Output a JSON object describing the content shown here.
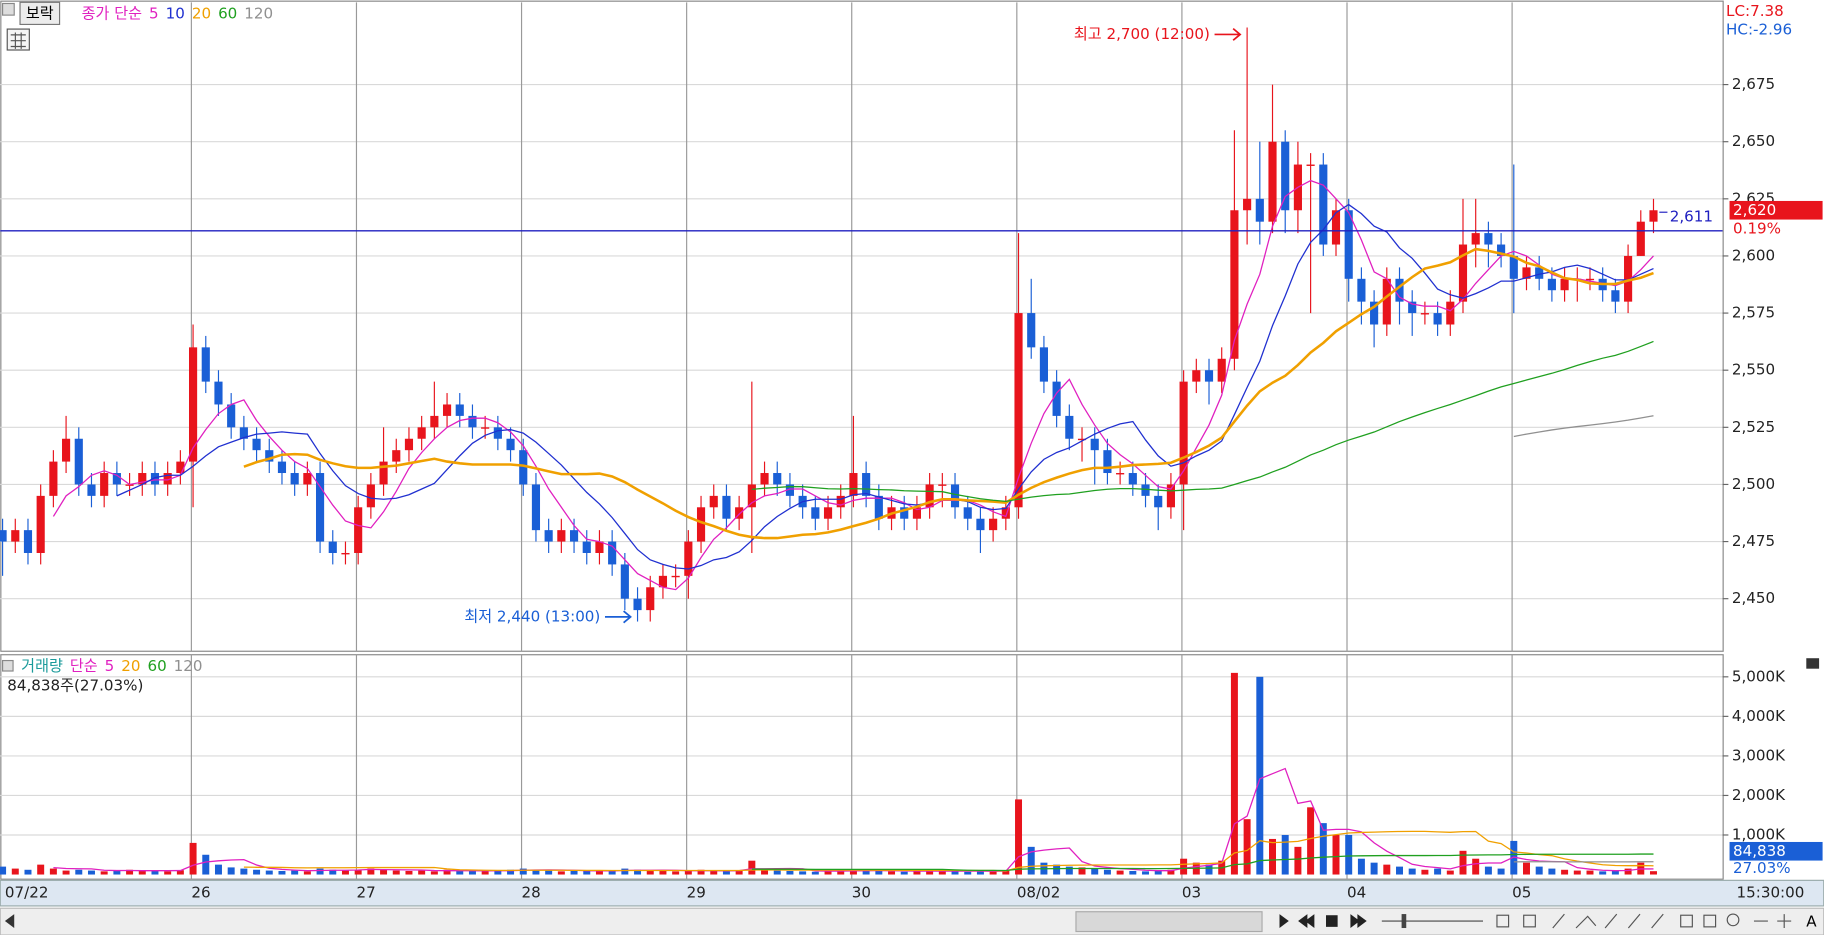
{
  "chart_data": {
    "type": "candlestick",
    "symbol": "보락",
    "price_ma_label": "종가 단순",
    "price_ma": [
      {
        "name": "5",
        "color": "#e020c0"
      },
      {
        "name": "10",
        "color": "#2030d0"
      },
      {
        "name": "20",
        "color": "#f0a000"
      },
      {
        "name": "60",
        "color": "#20a020"
      },
      {
        "name": "120",
        "color": "#909090"
      }
    ],
    "volume_label": "거래량",
    "volume_ma_label": "단순",
    "volume_ma": [
      {
        "name": "5",
        "color": "#e020c0"
      },
      {
        "name": "20",
        "color": "#f0a000"
      },
      {
        "name": "60",
        "color": "#20a020"
      },
      {
        "name": "120",
        "color": "#909090"
      }
    ],
    "lc_label": "LC:7.38",
    "hc_label": "HC:-2.96",
    "up_color": "#e8141c",
    "down_color": "#1a5fd6",
    "x": [
      "07/22",
      null,
      null,
      null,
      null,
      null,
      null,
      null,
      null,
      null,
      null,
      null,
      null,
      null,
      null,
      "26",
      null,
      null,
      null,
      null,
      null,
      null,
      null,
      null,
      null,
      null,
      null,
      null,
      "27",
      null,
      null,
      null,
      null,
      null,
      null,
      null,
      null,
      null,
      null,
      null,
      null,
      "28",
      null,
      null,
      null,
      null,
      null,
      null,
      null,
      null,
      null,
      null,
      null,
      null,
      "29",
      null,
      null,
      null,
      null,
      null,
      null,
      null,
      null,
      null,
      null,
      null,
      null,
      "30",
      null,
      null,
      null,
      null,
      null,
      null,
      null,
      null,
      null,
      null,
      null,
      null,
      "08/02",
      null,
      null,
      null,
      null,
      null,
      null,
      null,
      null,
      null,
      null,
      null,
      null,
      "03",
      null,
      null,
      null,
      null,
      null,
      null,
      null,
      null,
      null,
      null,
      null,
      null,
      "04",
      null,
      null,
      null,
      null,
      null,
      null,
      null,
      null,
      null,
      null,
      null,
      null,
      "05",
      null,
      null,
      null,
      null,
      null,
      null,
      null,
      null,
      null,
      null,
      null
    ],
    "open": [
      2480,
      2475,
      2480,
      2470,
      2495,
      2510,
      2520,
      2500,
      2495,
      2505,
      2500,
      2500,
      2505,
      2500,
      2505,
      2510,
      2560,
      2545,
      2535,
      2525,
      2520,
      2515,
      2510,
      2505,
      2500,
      2505,
      2475,
      2470,
      2470,
      2490,
      2500,
      2510,
      2515,
      2520,
      2525,
      2530,
      2535,
      2530,
      2525,
      2525,
      2520,
      2515,
      2500,
      2480,
      2475,
      2480,
      2475,
      2470,
      2475,
      2465,
      2450,
      2445,
      2455,
      2460,
      2460,
      2475,
      2490,
      2495,
      2485,
      2490,
      2500,
      2505,
      2500,
      2495,
      2490,
      2485,
      2490,
      2495,
      2505,
      2495,
      2485,
      2490,
      2485,
      2490,
      2500,
      2500,
      2490,
      2485,
      2480,
      2485,
      2490,
      2575,
      2560,
      2545,
      2530,
      2520,
      2520,
      2515,
      2505,
      2505,
      2500,
      2495,
      2490,
      2500,
      2545,
      2550,
      2545,
      2555,
      2620,
      2625,
      2615,
      2650,
      2620,
      2640,
      2640,
      2605,
      2620,
      2590,
      2580,
      2570,
      2590,
      2580,
      2575,
      2575,
      2570,
      2580,
      2605,
      2610,
      2605,
      2600,
      2590,
      2595,
      2590,
      2585,
      2590,
      2590,
      2590,
      2585,
      2580,
      2600,
      2615
    ],
    "high": [
      2485,
      2485,
      2485,
      2500,
      2515,
      2530,
      2525,
      2505,
      2510,
      2510,
      2505,
      2510,
      2510,
      2510,
      2515,
      2570,
      2565,
      2550,
      2540,
      2530,
      2525,
      2520,
      2515,
      2510,
      2510,
      2510,
      2480,
      2475,
      2495,
      2505,
      2525,
      2520,
      2525,
      2530,
      2545,
      2540,
      2540,
      2535,
      2530,
      2530,
      2525,
      2520,
      2505,
      2485,
      2485,
      2485,
      2480,
      2480,
      2480,
      2470,
      2455,
      2460,
      2465,
      2465,
      2480,
      2495,
      2500,
      2500,
      2495,
      2545,
      2510,
      2510,
      2505,
      2500,
      2495,
      2495,
      2500,
      2530,
      2510,
      2500,
      2495,
      2495,
      2495,
      2505,
      2505,
      2505,
      2495,
      2490,
      2490,
      2495,
      2610,
      2590,
      2565,
      2550,
      2535,
      2525,
      2525,
      2520,
      2510,
      2510,
      2505,
      2500,
      2505,
      2550,
      2555,
      2555,
      2560,
      2655,
      2700,
      2650,
      2675,
      2655,
      2650,
      2645,
      2645,
      2625,
      2625,
      2595,
      2585,
      2595,
      2595,
      2585,
      2580,
      2580,
      2585,
      2625,
      2625,
      2615,
      2610,
      2640,
      2600,
      2600,
      2595,
      2595,
      2595,
      2595,
      2595,
      2590,
      2605,
      2620,
      2625
    ],
    "low": [
      2460,
      2470,
      2465,
      2465,
      2490,
      2505,
      2495,
      2490,
      2490,
      2495,
      2495,
      2495,
      2495,
      2495,
      2500,
      2490,
      2540,
      2530,
      2520,
      2515,
      2510,
      2505,
      2500,
      2495,
      2495,
      2470,
      2465,
      2465,
      2465,
      2485,
      2495,
      2505,
      2510,
      2515,
      2520,
      2525,
      2525,
      2520,
      2520,
      2515,
      2510,
      2495,
      2475,
      2470,
      2470,
      2470,
      2465,
      2465,
      2460,
      2445,
      2440,
      2440,
      2450,
      2455,
      2450,
      2470,
      2485,
      2480,
      2480,
      2470,
      2495,
      2495,
      2490,
      2485,
      2480,
      2480,
      2485,
      2490,
      2490,
      2480,
      2480,
      2480,
      2480,
      2485,
      2490,
      2485,
      2480,
      2470,
      2475,
      2480,
      2485,
      2555,
      2540,
      2525,
      2515,
      2510,
      2500,
      2500,
      2500,
      2495,
      2490,
      2480,
      2485,
      2480,
      2540,
      2535,
      2540,
      2550,
      2605,
      2605,
      2610,
      2610,
      2610,
      2575,
      2600,
      2600,
      2580,
      2570,
      2560,
      2565,
      2570,
      2565,
      2570,
      2565,
      2565,
      2575,
      2595,
      2595,
      2595,
      2575,
      2585,
      2585,
      2580,
      2580,
      2580,
      2585,
      2580,
      2575,
      2575,
      2600,
      2610
    ],
    "close": [
      2475,
      2480,
      2470,
      2495,
      2510,
      2520,
      2500,
      2495,
      2505,
      2500,
      2500,
      2505,
      2500,
      2505,
      2510,
      2560,
      2545,
      2535,
      2525,
      2520,
      2515,
      2510,
      2505,
      2500,
      2505,
      2475,
      2470,
      2470,
      2490,
      2500,
      2510,
      2515,
      2520,
      2525,
      2530,
      2535,
      2530,
      2525,
      2525,
      2520,
      2515,
      2500,
      2480,
      2475,
      2480,
      2475,
      2470,
      2475,
      2465,
      2450,
      2445,
      2455,
      2460,
      2460,
      2475,
      2490,
      2495,
      2485,
      2490,
      2500,
      2505,
      2500,
      2495,
      2490,
      2485,
      2490,
      2495,
      2505,
      2495,
      2485,
      2490,
      2485,
      2490,
      2500,
      2500,
      2490,
      2485,
      2480,
      2485,
      2490,
      2575,
      2560,
      2545,
      2530,
      2520,
      2520,
      2515,
      2505,
      2505,
      2500,
      2495,
      2490,
      2500,
      2545,
      2550,
      2545,
      2555,
      2620,
      2625,
      2615,
      2650,
      2620,
      2640,
      2640,
      2605,
      2620,
      2590,
      2580,
      2570,
      2590,
      2580,
      2575,
      2575,
      2570,
      2580,
      2605,
      2610,
      2605,
      2600,
      2590,
      2595,
      2590,
      2585,
      2590,
      2590,
      2590,
      2585,
      2580,
      2600,
      2615,
      2620
    ],
    "volume": [
      200000,
      150000,
      120000,
      250000,
      150000,
      100000,
      120000,
      100000,
      80000,
      100000,
      120000,
      90000,
      100000,
      80000,
      110000,
      800000,
      500000,
      250000,
      180000,
      150000,
      120000,
      100000,
      90000,
      100000,
      80000,
      150000,
      120000,
      100000,
      120000,
      150000,
      130000,
      100000,
      90000,
      100000,
      80000,
      120000,
      100000,
      90000,
      80000,
      100000,
      120000,
      150000,
      120000,
      100000,
      80000,
      90000,
      100000,
      80000,
      100000,
      150000,
      120000,
      100000,
      90000,
      80000,
      100000,
      120000,
      90000,
      80000,
      100000,
      350000,
      120000,
      100000,
      90000,
      80000,
      70000,
      90000,
      100000,
      120000,
      100000,
      90000,
      80000,
      70000,
      90000,
      100000,
      80000,
      90000,
      70000,
      80000,
      90000,
      100000,
      1900000,
      700000,
      300000,
      250000,
      200000,
      180000,
      150000,
      120000,
      100000,
      90000,
      80000,
      100000,
      120000,
      400000,
      300000,
      250000,
      350000,
      5100000,
      1400000,
      5000000,
      900000,
      1000000,
      700000,
      1700000,
      1300000,
      1000000,
      1000000,
      400000,
      300000,
      250000,
      200000,
      150000,
      120000,
      150000,
      100000,
      600000,
      400000,
      200000,
      150000,
      850000,
      300000,
      200000,
      150000,
      120000,
      100000,
      100000,
      80000,
      90000,
      150000,
      300000,
      84838
    ],
    "ylim": [
      2427,
      2711
    ],
    "yticks": [
      {
        "value": 2450,
        "label": "2,450"
      },
      {
        "value": 2475,
        "label": "2,475"
      },
      {
        "value": 2500,
        "label": "2,500"
      },
      {
        "value": 2525,
        "label": "2,525"
      },
      {
        "value": 2550,
        "label": "2,550"
      },
      {
        "value": 2575,
        "label": "2,575"
      },
      {
        "value": 2600,
        "label": "2,600"
      },
      {
        "value": 2625,
        "label": "2,625"
      },
      {
        "value": 2650,
        "label": "2,650"
      },
      {
        "value": 2675,
        "label": "2,675"
      }
    ],
    "volume_ylim": [
      0,
      5500000
    ],
    "volume_yticks": [
      {
        "value": 1000000,
        "label": "1,000K"
      },
      {
        "value": 2000000,
        "label": "2,000K"
      },
      {
        "value": 3000000,
        "label": "3,000K"
      },
      {
        "value": 4000000,
        "label": "4,000K"
      },
      {
        "value": 5000000,
        "label": "5,000K"
      }
    ],
    "grid": true,
    "reference_line": {
      "value": 2611,
      "label": "2,611",
      "color": "#2020c0"
    },
    "last_price_label": "2,620",
    "change_label": "0.19%",
    "high_annotation": "최고 2,700 (12:00)",
    "low_annotation": "최저 2,440 (13:00)",
    "volume_info": "84,838주(27.03%)",
    "last_volume_label": "84,838",
    "volume_ratio_label": "27.03%",
    "time_label": "15:30:00"
  }
}
